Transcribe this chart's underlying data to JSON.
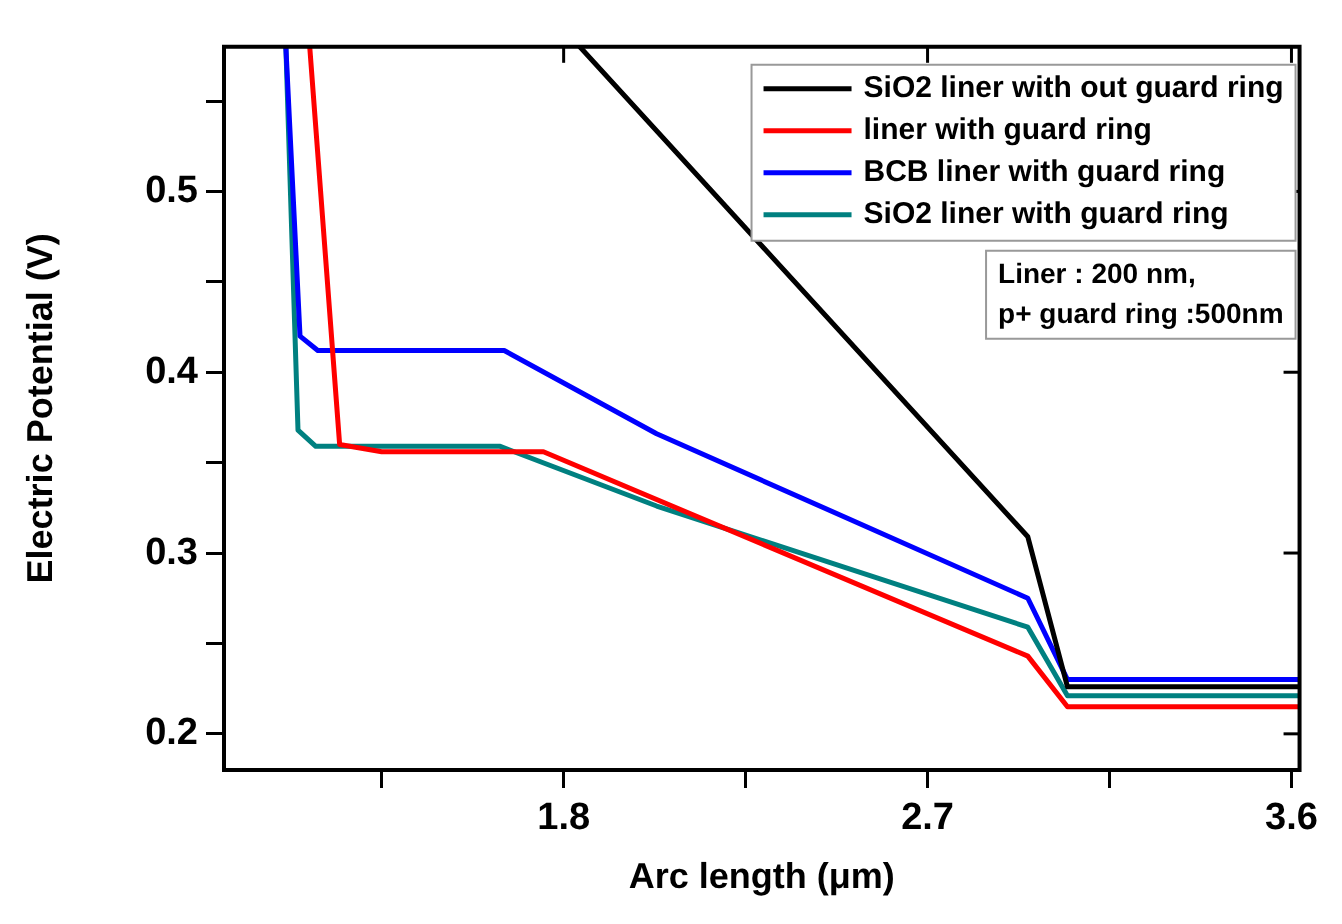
{
  "chart_data": {
    "type": "line",
    "xlabel": "Arc length (μm)",
    "ylabel": "Electric Potential (V)",
    "xlim": [
      0.96,
      3.62
    ],
    "xticks": [
      {
        "value": 1.35,
        "label": null
      },
      1.8,
      {
        "value": 2.25,
        "label": null
      },
      2.7,
      {
        "value": 3.15,
        "label": null
      },
      3.6
    ],
    "ylim": [
      0.18,
      0.58
    ],
    "yticks": [
      0.2,
      {
        "value": 0.25,
        "label": null
      },
      0.3,
      {
        "value": 0.35,
        "label": null
      },
      0.4,
      {
        "value": 0.45,
        "label": null
      },
      0.5,
      {
        "value": 0.55,
        "label": null
      }
    ],
    "grid": false,
    "legend": "top right",
    "marker": "none",
    "line_style": "solid",
    "annotations": [
      "Liner : 200 nm,\np+ guard ring :500nm"
    ],
    "series": [
      {
        "name": "SiO2 liner with out guard ring",
        "color": "#000000",
        "x": [
          1.84,
          2.948,
          3.046,
          3.62
        ],
        "values": [
          0.58,
          0.309,
          0.226,
          0.226
        ]
      },
      {
        "name": "liner with guard ring",
        "color": "#ff0000",
        "x": [
          1.172,
          1.246,
          1.35,
          1.75,
          2.948,
          3.046,
          3.62
        ],
        "values": [
          0.58,
          0.36,
          0.356,
          0.356,
          0.243,
          0.215,
          0.215
        ]
      },
      {
        "name": "BCB liner with guard ring",
        "color": "#0000ff",
        "x": [
          1.113,
          1.148,
          1.192,
          1.653,
          2.03,
          2.948,
          3.046,
          3.62
        ],
        "values": [
          0.58,
          0.42,
          0.412,
          0.412,
          0.366,
          0.275,
          0.23,
          0.23
        ]
      },
      {
        "name": "SiO2 liner with guard ring",
        "color": "#008080",
        "x": [
          1.113,
          1.143,
          1.187,
          1.643,
          2.03,
          2.948,
          3.046,
          3.62
        ],
        "values": [
          0.58,
          0.368,
          0.359,
          0.359,
          0.326,
          0.259,
          0.221,
          0.221
        ]
      }
    ]
  }
}
